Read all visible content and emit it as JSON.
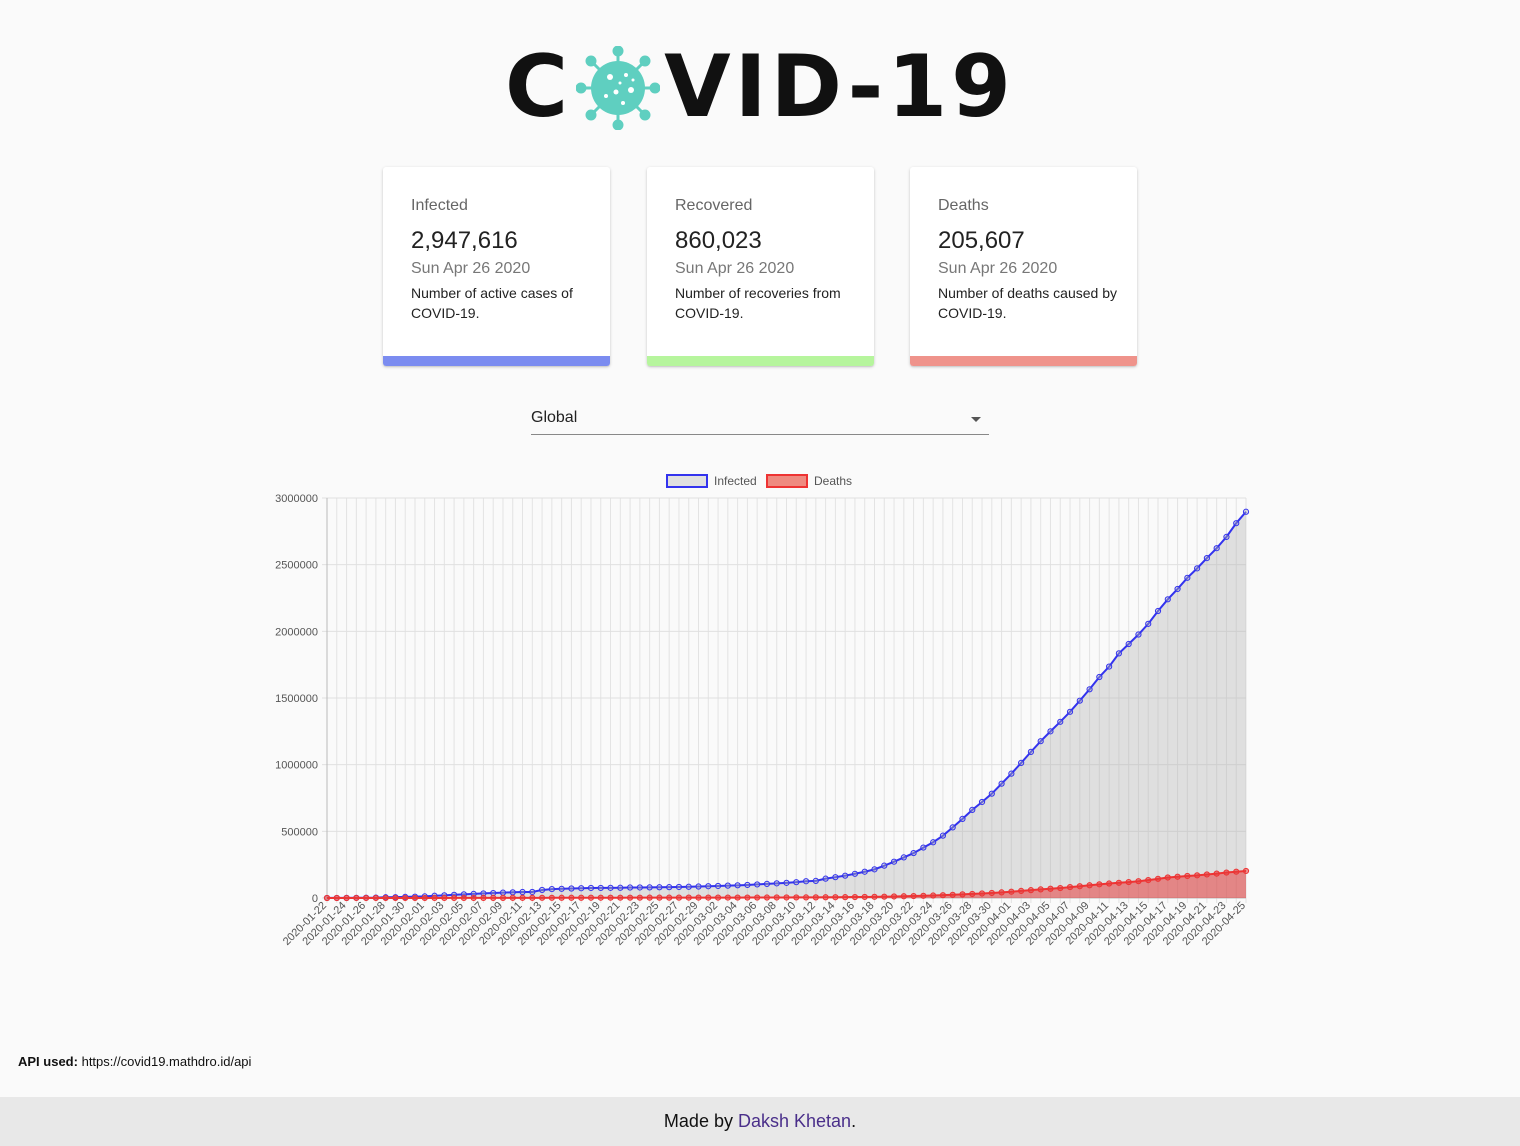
{
  "header": {
    "logo_left": "C",
    "logo_right": "VID-19",
    "logo_icon": "virus-icon"
  },
  "cards": [
    {
      "label": "Infected",
      "value": "2,947,616",
      "date": "Sun Apr 26 2020",
      "description": "Number of active cases of COVID-19.",
      "color": "#7b8cf0"
    },
    {
      "label": "Recovered",
      "value": "860,023",
      "date": "Sun Apr 26 2020",
      "description": "Number of recoveries from COVID-19.",
      "color": "#b6f59d"
    },
    {
      "label": "Deaths",
      "value": "205,607",
      "date": "Sun Apr 26 2020",
      "description": "Number of deaths caused by COVID-19.",
      "color": "#ef938b"
    }
  ],
  "country_select": {
    "selected": "Global"
  },
  "chart_data": {
    "type": "line",
    "legend": [
      "Infected",
      "Deaths"
    ],
    "legend_position": "top",
    "grid": true,
    "ylim": [
      0,
      3000000
    ],
    "yticks": [
      0,
      500000,
      1000000,
      1500000,
      2000000,
      2500000,
      3000000
    ],
    "x_start": "2020-01-22",
    "x_end": "2020-04-25",
    "x": [
      "2020-01-22",
      "2020-01-23",
      "2020-01-24",
      "2020-01-25",
      "2020-01-26",
      "2020-01-27",
      "2020-01-28",
      "2020-01-29",
      "2020-01-30",
      "2020-01-31",
      "2020-02-01",
      "2020-02-02",
      "2020-02-03",
      "2020-02-04",
      "2020-02-05",
      "2020-02-06",
      "2020-02-07",
      "2020-02-08",
      "2020-02-09",
      "2020-02-10",
      "2020-02-11",
      "2020-02-12",
      "2020-02-13",
      "2020-02-14",
      "2020-02-15",
      "2020-02-16",
      "2020-02-17",
      "2020-02-18",
      "2020-02-19",
      "2020-02-20",
      "2020-02-21",
      "2020-02-22",
      "2020-02-23",
      "2020-02-24",
      "2020-02-25",
      "2020-02-26",
      "2020-02-27",
      "2020-02-28",
      "2020-02-29",
      "2020-03-01",
      "2020-03-02",
      "2020-03-03",
      "2020-03-04",
      "2020-03-05",
      "2020-03-06",
      "2020-03-07",
      "2020-03-08",
      "2020-03-09",
      "2020-03-10",
      "2020-03-11",
      "2020-03-12",
      "2020-03-13",
      "2020-03-14",
      "2020-03-15",
      "2020-03-16",
      "2020-03-17",
      "2020-03-18",
      "2020-03-19",
      "2020-03-20",
      "2020-03-21",
      "2020-03-22",
      "2020-03-23",
      "2020-03-24",
      "2020-03-25",
      "2020-03-26",
      "2020-03-27",
      "2020-03-28",
      "2020-03-29",
      "2020-03-30",
      "2020-03-31",
      "2020-04-01",
      "2020-04-02",
      "2020-04-03",
      "2020-04-04",
      "2020-04-05",
      "2020-04-06",
      "2020-04-07",
      "2020-04-08",
      "2020-04-09",
      "2020-04-10",
      "2020-04-11",
      "2020-04-12",
      "2020-04-13",
      "2020-04-14",
      "2020-04-15",
      "2020-04-16",
      "2020-04-17",
      "2020-04-18",
      "2020-04-19",
      "2020-04-20",
      "2020-04-21",
      "2020-04-22",
      "2020-04-23",
      "2020-04-24",
      "2020-04-25"
    ],
    "series": [
      {
        "name": "Infected",
        "color": "#3333ee",
        "fill": "rgba(180,180,180,0.38)",
        "values": [
          557,
          655,
          941,
          1434,
          2118,
          2927,
          5578,
          6166,
          8234,
          9927,
          12038,
          16787,
          19881,
          23892,
          27635,
          30817,
          34391,
          37120,
          40150,
          42762,
          44802,
          45221,
          60368,
          66885,
          69030,
          71224,
          73258,
          75136,
          75639,
          76197,
          76819,
          78572,
          78958,
          79561,
          80406,
          81388,
          82746,
          84112,
          86011,
          88369,
          90306,
          92840,
          95120,
          97886,
          101801,
          105847,
          109821,
          113590,
          118620,
          125875,
          128352,
          145205,
          156101,
          167454,
          181574,
          197102,
          214821,
          242570,
          272208,
          304507,
          336953,
          378235,
          418045,
          467653,
          529591,
          593291,
          660706,
          720117,
          782389,
          857487,
          932605,
          1013157,
          1095917,
          1176060,
          1249754,
          1321481,
          1396476,
          1479804,
          1565278,
          1657526,
          1735650,
          1834721,
          1904838,
          1976191,
          2056054,
          2152437,
          2240190,
          2317759,
          2401378,
          2472259,
          2549294,
          2623415,
          2708403,
          2811193,
          2896746
        ]
      },
      {
        "name": "Deaths",
        "color": "#ee3333",
        "fill": "rgba(230,60,60,0.55)",
        "values": [
          17,
          18,
          26,
          42,
          56,
          82,
          131,
          133,
          171,
          213,
          259,
          362,
          426,
          492,
          564,
          634,
          719,
          806,
          906,
          1013,
          1113,
          1118,
          1371,
          1523,
          1666,
          1770,
          1868,
          2007,
          2122,
          2247,
          2251,
          2458,
          2469,
          2629,
          2708,
          2770,
          2814,
          2872,
          2941,
          2996,
          3085,
          3160,
          3254,
          3348,
          3460,
          3558,
          3802,
          3988,
          4262,
          4615,
          4720,
          5404,
          5819,
          6440,
          7126,
          7905,
          8733,
          9867,
          11299,
          12973,
          14623,
          16497,
          18615,
          21181,
          23970,
          27198,
          30652,
          33925,
          37582,
          42107,
          47180,
          53190,
          58787,
          64606,
          69374,
          74565,
          81865,
          88338,
          95455,
          102525,
          108502,
          114090,
          119482,
          125984,
          134177,
          143800,
          153822,
          159510,
          165044,
          169986,
          176583,
          183066,
          190858,
          197159,
          202846
        ]
      }
    ]
  },
  "footer_api": {
    "label": "API used:",
    "url": "https://covid19.mathdro.id/api"
  },
  "footer": {
    "prefix": "Made by",
    "author": "Daksh Khetan",
    "suffix": "."
  }
}
